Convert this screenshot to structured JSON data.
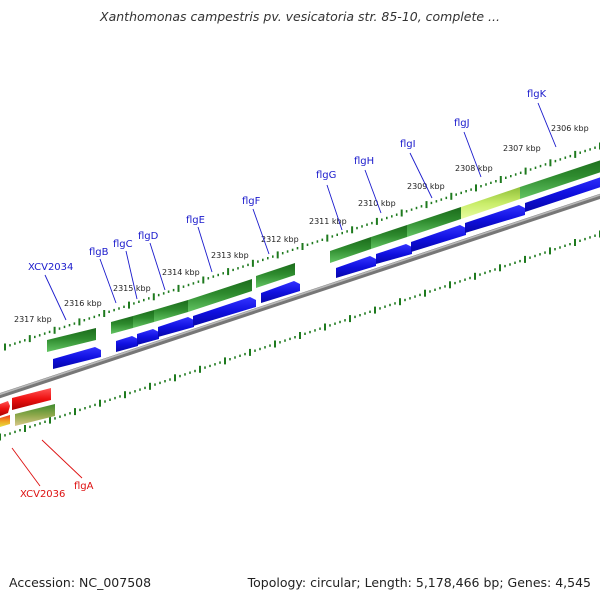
{
  "title": "Xanthomonas campestris pv. vesicatoria str. 85-10, complete ...",
  "footer": {
    "accession": "Accession: NC_007508",
    "summary": "Topology: circular; Length: 5,178,466 bp; Genes: 4,545"
  },
  "colors": {
    "forward_gene": "#2e8b2e",
    "highlight_gene": "#b7e05a",
    "cds": "#1010ee",
    "reverse_gene": "#ee1111",
    "backbone": "#888888",
    "tick": "#1e7a1e",
    "label_blue": "#1a1acc",
    "label_red": "#dd1111"
  },
  "scale_labels": [
    "2317 kbp",
    "2316 kbp",
    "2315 kbp",
    "2314 kbp",
    "2313 kbp",
    "2312 kbp",
    "2311 kbp",
    "2310 kbp",
    "2309 kbp",
    "2308 kbp",
    "2307 kbp",
    "2306 kbp"
  ],
  "forward_genes": [
    "XCV2034",
    "flgB",
    "flgC",
    "flgD",
    "flgE",
    "flgF",
    "flgG",
    "flgH",
    "flgI",
    "flgJ",
    "flgK"
  ],
  "reverse_genes": [
    "XCV2036",
    "flgA"
  ]
}
